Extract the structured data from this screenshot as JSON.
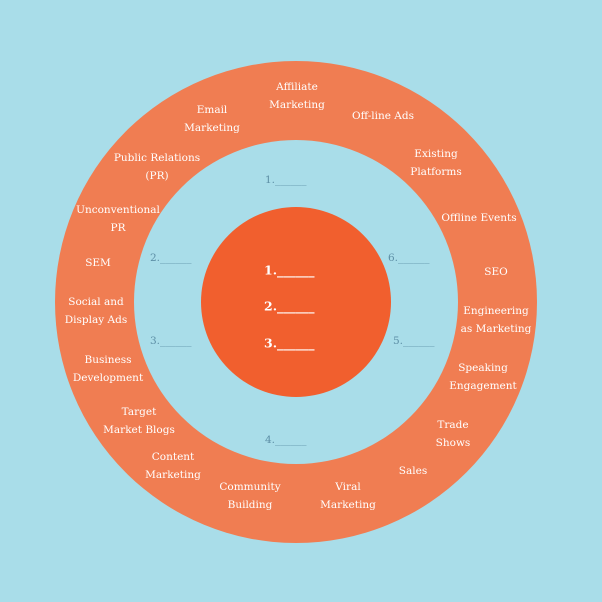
{
  "colors": {
    "background": "#a9dde9",
    "outer_ring": "#f07d52",
    "inner_ring": "#a9dde9",
    "center": "#f15f2e",
    "ring_text": "#ffffff",
    "blank_text": "#5d8fa6"
  },
  "center_items": [
    "1.______",
    "2.______",
    "3.______"
  ],
  "blanks": [
    "1.______",
    "2.______",
    "3.______",
    "4.______",
    "5.______",
    "6.______"
  ],
  "channels": [
    "Affiliate\nMarketing",
    "Off-line Ads",
    "Existing\nPlatforms",
    "Offline Events",
    "SEO",
    "Engineering\nas Marketing",
    "Speaking\nEngagement",
    "Trade\nShows",
    "Sales",
    "Viral\nMarketing",
    "Community\nBuilding",
    "Content\nMarketing",
    "Target\nMarket Blogs",
    "Business\nDevelopment",
    "Social and\nDisplay Ads",
    "SEM",
    "Unconventional\nPR",
    "Public Relations\n(PR)",
    "Email\nMarketing"
  ]
}
